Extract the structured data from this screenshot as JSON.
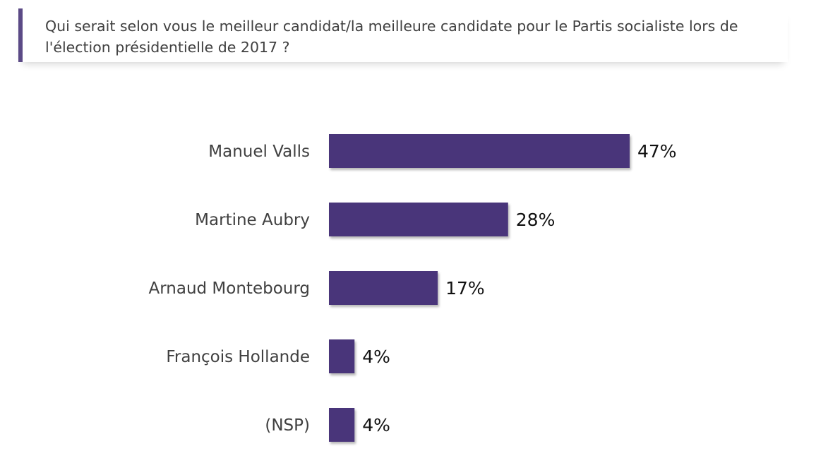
{
  "question": {
    "text": "Qui serait selon vous le meilleur candidat/la meilleure candidate pour le Partis socialiste lors de l'élection présidentielle de 2017 ?"
  },
  "colors": {
    "bar": "#48357a",
    "accent": "#5b4a86"
  },
  "chart_data": {
    "type": "bar",
    "orientation": "horizontal",
    "categories": [
      "Manuel Valls",
      "Martine Aubry",
      "Arnaud Montebourg",
      "François Hollande",
      "(NSP)"
    ],
    "values": [
      47,
      28,
      17,
      4,
      4
    ],
    "value_labels": [
      "47%",
      "28%",
      "17%",
      "4%",
      "4%"
    ],
    "unit": "%",
    "xlim": [
      0,
      100
    ],
    "grid": false,
    "legend": "none"
  }
}
